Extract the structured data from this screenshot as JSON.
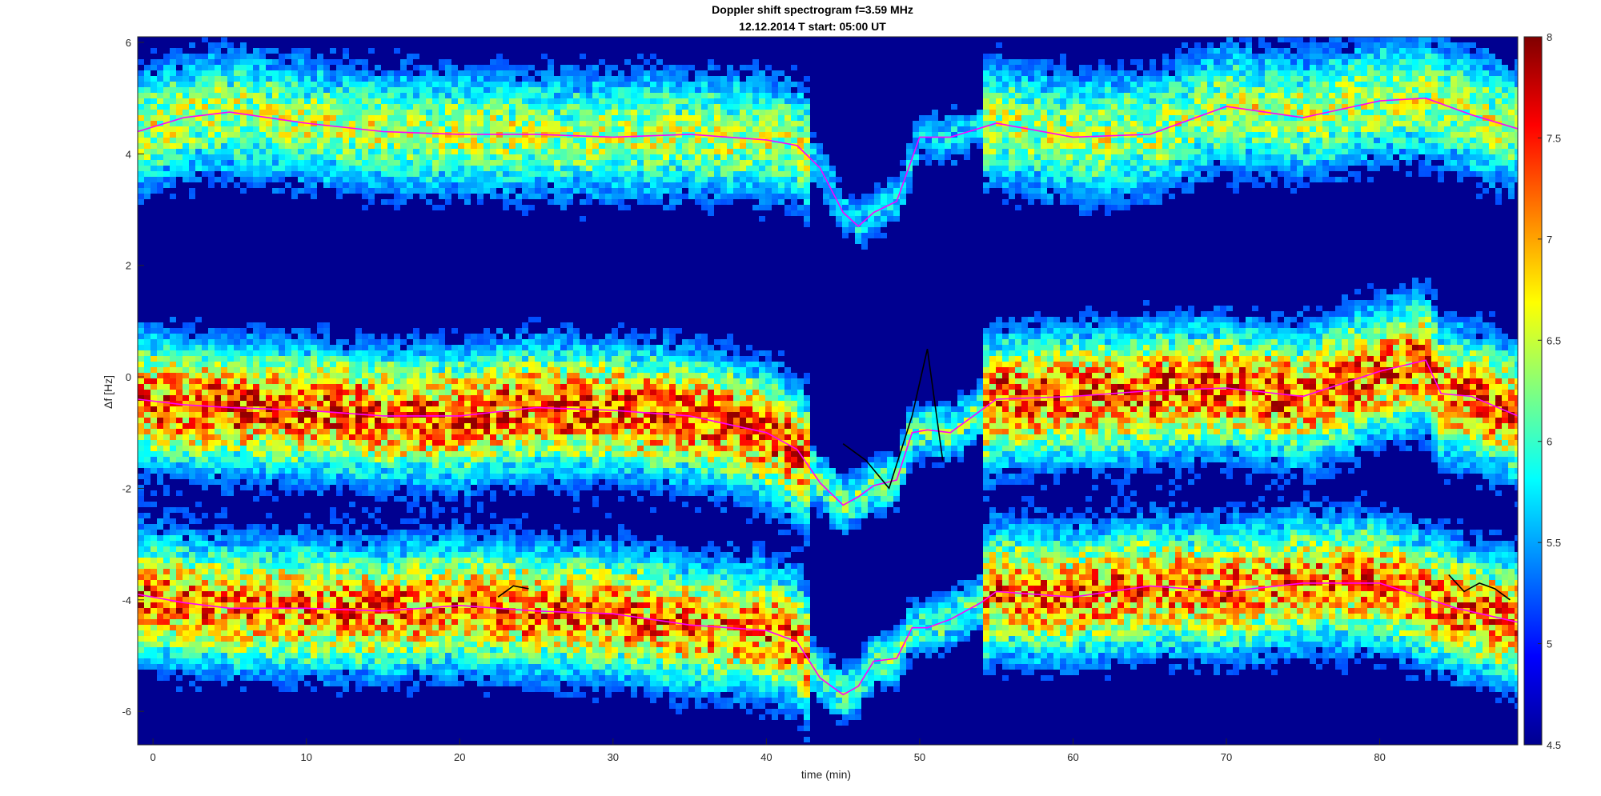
{
  "chart_data": {
    "type": "heatmap",
    "title": "Doppler shift spectrogram f=3.59 MHz",
    "subtitle": "12.12.2014   T start: 05:00 UT",
    "xlabel": "time (min)",
    "ylabel": "Δf [Hz]",
    "xlim": [
      -1,
      89
    ],
    "ylim": [
      -6.6,
      6.1
    ],
    "xticks": [
      0,
      10,
      20,
      30,
      40,
      50,
      60,
      70,
      80
    ],
    "yticks": [
      6,
      4,
      2,
      0,
      -2,
      -4,
      -6
    ],
    "colorbar": {
      "min": 4.5,
      "max": 8,
      "ticks": [
        8,
        7.5,
        7,
        6.5,
        6,
        5.5,
        5,
        4.5
      ],
      "colormap": "jet"
    },
    "grid": false,
    "traces": [
      {
        "color": "#ff00ff",
        "x": [
          -1,
          2,
          5,
          10,
          15,
          20,
          25,
          30,
          35,
          40,
          42,
          43.5,
          45,
          46,
          47,
          48.5,
          50,
          52,
          55,
          60,
          65,
          70,
          75,
          80,
          83,
          86,
          89
        ],
        "y": [
          4.4,
          4.65,
          4.75,
          4.55,
          4.4,
          4.35,
          4.35,
          4.3,
          4.35,
          4.25,
          4.15,
          3.75,
          2.95,
          2.7,
          2.95,
          3.15,
          4.3,
          4.3,
          4.55,
          4.3,
          4.35,
          4.85,
          4.65,
          4.95,
          5.0,
          4.7,
          4.45
        ]
      },
      {
        "color": "#ff00ff",
        "x": [
          -1,
          2,
          5,
          10,
          15,
          20,
          25,
          30,
          35,
          40,
          42,
          43.5,
          45,
          46,
          47,
          48.5,
          49.5,
          50.5,
          52,
          55,
          60,
          65,
          70,
          75,
          80,
          83,
          84,
          86,
          89
        ],
        "y": [
          -0.4,
          -0.5,
          -0.55,
          -0.6,
          -0.7,
          -0.7,
          -0.55,
          -0.6,
          -0.7,
          -1.0,
          -1.3,
          -1.9,
          -2.3,
          -2.15,
          -1.95,
          -1.85,
          -1.0,
          -0.95,
          -1.0,
          -0.4,
          -0.35,
          -0.25,
          -0.2,
          -0.35,
          0.1,
          0.3,
          -0.3,
          -0.35,
          -0.7
        ]
      },
      {
        "color": "#000000",
        "x": [
          45,
          46.5,
          48,
          49.5,
          50.5,
          51.5
        ],
        "y": [
          -1.2,
          -1.5,
          -2.0,
          -0.7,
          0.5,
          -1.5
        ]
      },
      {
        "color": "#ff00ff",
        "x": [
          -1,
          2,
          5,
          10,
          15,
          20,
          25,
          30,
          35,
          40,
          42,
          43.5,
          45,
          46,
          47,
          48.5,
          49.5,
          50.5,
          52,
          54,
          55,
          60,
          65,
          70,
          75,
          80,
          85,
          89
        ],
        "y": [
          -3.9,
          -4.05,
          -4.15,
          -4.15,
          -4.2,
          -4.1,
          -4.2,
          -4.25,
          -4.45,
          -4.55,
          -4.75,
          -5.4,
          -5.7,
          -5.55,
          -5.1,
          -5.05,
          -4.5,
          -4.5,
          -4.35,
          -4.05,
          -3.85,
          -3.95,
          -3.75,
          -3.85,
          -3.7,
          -3.7,
          -4.15,
          -4.4
        ]
      },
      {
        "color": "#000000",
        "x": [
          22.5,
          23.5,
          24.5
        ],
        "y": [
          -3.95,
          -3.75,
          -3.8
        ]
      },
      {
        "color": "#000000",
        "x": [
          84.5,
          85.5,
          86.5,
          87.5,
          88.5
        ],
        "y": [
          -3.55,
          -3.85,
          -3.7,
          -3.8,
          -4.0
        ]
      }
    ]
  }
}
